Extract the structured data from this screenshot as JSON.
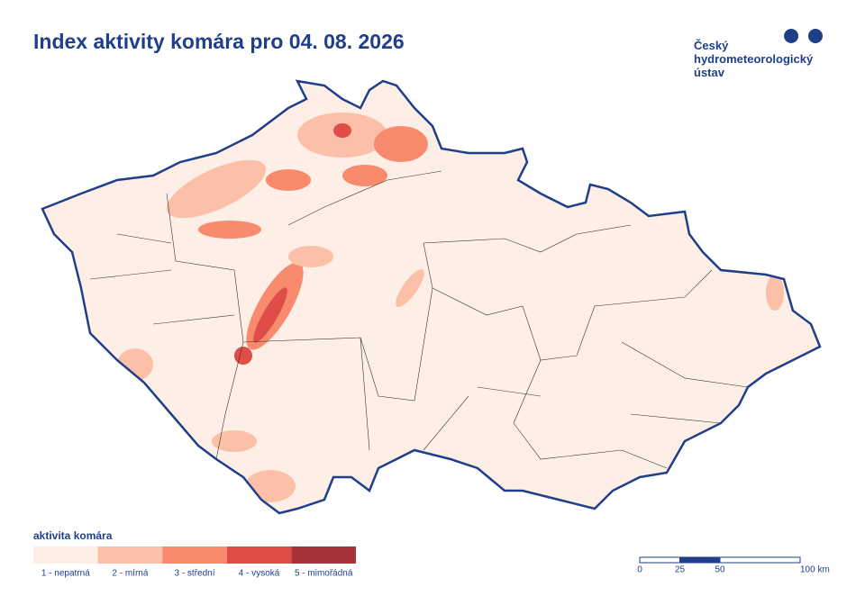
{
  "header": {
    "title": "Index aktivity komára pro 04. 08. 2026"
  },
  "logo": {
    "lines": [
      "Český",
      "hydrometeorologický",
      "ústav"
    ]
  },
  "legend": {
    "title": "aktivita komára",
    "items": [
      {
        "label": "1 - nepatrná",
        "color": "#fdeee6"
      },
      {
        "label": "2 - mírná",
        "color": "#fcc0a8"
      },
      {
        "label": "3 - střední",
        "color": "#f88a6e"
      },
      {
        "label": "4 - vysoká",
        "color": "#e04c48"
      },
      {
        "label": "5 - mimořádná",
        "color": "#a8333a"
      }
    ]
  },
  "scale": {
    "ticks": [
      0,
      25,
      50,
      {
        "value": 100,
        "label": "100 km"
      }
    ]
  }
}
